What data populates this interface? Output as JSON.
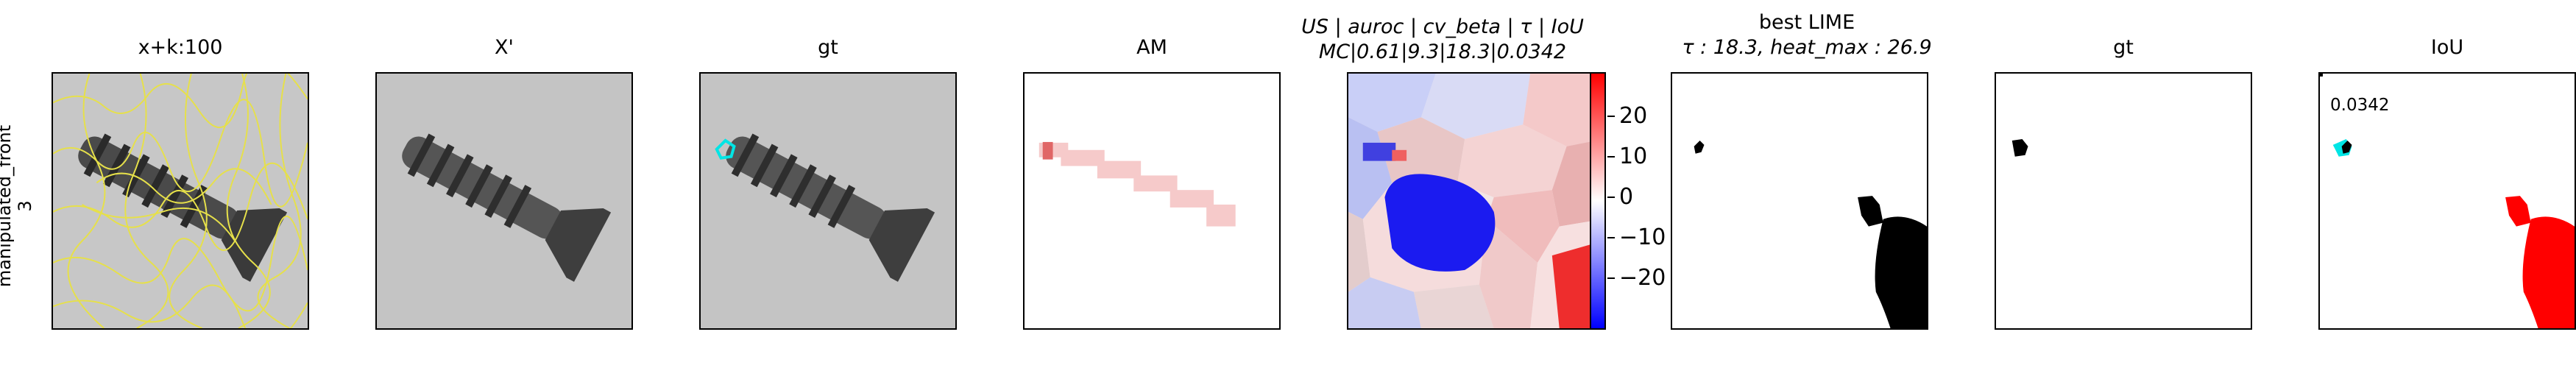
{
  "row_label": "manipulated_front\n3",
  "panels": [
    {
      "title": "x+k:100"
    },
    {
      "title": "X'"
    },
    {
      "title": "gt"
    },
    {
      "title": "AM"
    },
    {
      "title_line1": "US | auroc | cv_beta | τ | IoU",
      "title_line2": "MC|0.61|9.3|18.3|0.0342"
    },
    {
      "title_line1": "best LIME",
      "title_line2": "τ : 18.3, heat_max : 26.9"
    },
    {
      "title": "gt"
    },
    {
      "title": "IoU",
      "value": "0.0342"
    }
  ],
  "colorbar": {
    "ticks": [
      "20",
      "10",
      "0",
      "−10",
      "−20"
    ],
    "colors": {
      "max": "#ff0000",
      "mid": "#ffffff",
      "min": "#0000ff"
    }
  },
  "colors": {
    "superpixel": "#e6e04a",
    "highlight": "#00e5e5",
    "mask": "#000000",
    "iou_red": "#ff0000"
  }
}
